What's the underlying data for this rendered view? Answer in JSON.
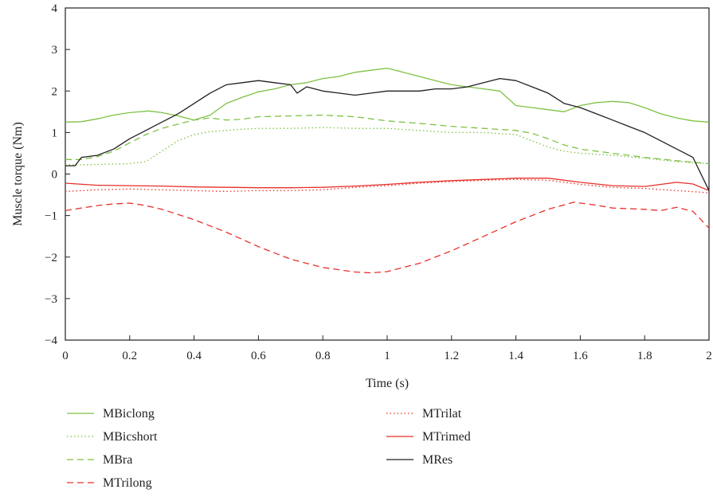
{
  "chart_data": {
    "type": "line",
    "title": "",
    "xlabel": "Time (s)",
    "ylabel": "Muscle torque (Nm)",
    "xlim": [
      0,
      2
    ],
    "ylim": [
      -4,
      4
    ],
    "x_ticks": [
      "0",
      "0.2",
      "0.4",
      "0.6",
      "0.8",
      "1",
      "1.2",
      "1.4",
      "1.6",
      "1.8",
      "2"
    ],
    "y_ticks": [
      "4",
      "3",
      "2",
      "1",
      "0",
      "−1",
      "−2",
      "−3",
      "−4"
    ],
    "grid": false,
    "legend_position": "bottom",
    "series": [
      {
        "name": "MBiclong",
        "color": "#7dc242",
        "dash": "solid",
        "x": [
          0,
          0.05,
          0.1,
          0.15,
          0.2,
          0.26,
          0.3,
          0.35,
          0.4,
          0.45,
          0.5,
          0.55,
          0.6,
          0.65,
          0.7,
          0.75,
          0.8,
          0.85,
          0.9,
          0.95,
          1.0,
          1.05,
          1.1,
          1.15,
          1.2,
          1.25,
          1.3,
          1.35,
          1.4,
          1.45,
          1.5,
          1.55,
          1.6,
          1.65,
          1.7,
          1.75,
          1.8,
          1.85,
          1.9,
          1.95,
          2.0
        ],
        "y": [
          1.25,
          1.26,
          1.33,
          1.42,
          1.48,
          1.52,
          1.48,
          1.4,
          1.3,
          1.42,
          1.7,
          1.85,
          1.98,
          2.05,
          2.15,
          2.2,
          2.3,
          2.35,
          2.45,
          2.5,
          2.55,
          2.45,
          2.35,
          2.25,
          2.15,
          2.1,
          2.05,
          2.0,
          1.65,
          1.6,
          1.55,
          1.5,
          1.65,
          1.72,
          1.75,
          1.72,
          1.6,
          1.45,
          1.35,
          1.28,
          1.25
        ]
      },
      {
        "name": "MBicshort",
        "color": "#7dc242",
        "dash": "dotted",
        "x": [
          0,
          0.05,
          0.1,
          0.15,
          0.2,
          0.25,
          0.3,
          0.35,
          0.4,
          0.45,
          0.5,
          0.55,
          0.6,
          0.7,
          0.8,
          0.9,
          1.0,
          1.1,
          1.2,
          1.3,
          1.4,
          1.45,
          1.5,
          1.55,
          1.6,
          1.7,
          1.8,
          1.9,
          2.0
        ],
        "y": [
          0.22,
          0.22,
          0.23,
          0.24,
          0.25,
          0.3,
          0.55,
          0.8,
          0.95,
          1.02,
          1.05,
          1.08,
          1.1,
          1.1,
          1.12,
          1.1,
          1.1,
          1.05,
          1.0,
          1.0,
          0.95,
          0.8,
          0.65,
          0.55,
          0.5,
          0.45,
          0.38,
          0.3,
          0.25
        ]
      },
      {
        "name": "MBra",
        "color": "#7dc242",
        "dash": "dashed",
        "x": [
          0,
          0.05,
          0.1,
          0.15,
          0.2,
          0.25,
          0.3,
          0.35,
          0.4,
          0.45,
          0.5,
          0.55,
          0.6,
          0.7,
          0.8,
          0.9,
          1.0,
          1.1,
          1.2,
          1.3,
          1.4,
          1.45,
          1.5,
          1.55,
          1.6,
          1.7,
          1.8,
          1.9,
          2.0
        ],
        "y": [
          0.35,
          0.35,
          0.42,
          0.55,
          0.75,
          0.95,
          1.1,
          1.2,
          1.3,
          1.35,
          1.3,
          1.32,
          1.38,
          1.4,
          1.42,
          1.38,
          1.28,
          1.22,
          1.15,
          1.1,
          1.05,
          0.98,
          0.85,
          0.7,
          0.6,
          0.5,
          0.4,
          0.32,
          0.25
        ]
      },
      {
        "name": "MTrilong",
        "color": "#e8302a",
        "dash": "dashed",
        "x": [
          0,
          0.05,
          0.1,
          0.15,
          0.2,
          0.25,
          0.3,
          0.4,
          0.5,
          0.6,
          0.7,
          0.8,
          0.9,
          0.95,
          1.0,
          1.1,
          1.2,
          1.3,
          1.4,
          1.5,
          1.58,
          1.65,
          1.7,
          1.8,
          1.85,
          1.9,
          1.95,
          2.0
        ],
        "y": [
          -0.88,
          -0.82,
          -0.76,
          -0.72,
          -0.7,
          -0.76,
          -0.85,
          -1.1,
          -1.4,
          -1.75,
          -2.05,
          -2.25,
          -2.36,
          -2.38,
          -2.35,
          -2.15,
          -1.85,
          -1.5,
          -1.15,
          -0.85,
          -0.68,
          -0.75,
          -0.82,
          -0.85,
          -0.88,
          -0.8,
          -0.9,
          -1.3
        ]
      },
      {
        "name": "MTrilat",
        "color": "#e8302a",
        "dash": "dotted",
        "x": [
          0,
          0.1,
          0.2,
          0.3,
          0.4,
          0.5,
          0.6,
          0.7,
          0.8,
          0.9,
          1.0,
          1.1,
          1.2,
          1.3,
          1.4,
          1.5,
          1.6,
          1.7,
          1.8,
          1.9,
          2.0
        ],
        "y": [
          -0.42,
          -0.38,
          -0.36,
          -0.38,
          -0.4,
          -0.42,
          -0.4,
          -0.4,
          -0.38,
          -0.32,
          -0.28,
          -0.22,
          -0.18,
          -0.15,
          -0.13,
          -0.15,
          -0.25,
          -0.32,
          -0.35,
          -0.4,
          -0.45
        ]
      },
      {
        "name": "MTrimed",
        "color": "#e8302a",
        "dash": "solid",
        "x": [
          0,
          0.1,
          0.2,
          0.3,
          0.4,
          0.5,
          0.6,
          0.7,
          0.8,
          0.9,
          1.0,
          1.1,
          1.2,
          1.3,
          1.4,
          1.5,
          1.6,
          1.7,
          1.8,
          1.9,
          1.95,
          2.0
        ],
        "y": [
          -0.22,
          -0.27,
          -0.28,
          -0.29,
          -0.31,
          -0.32,
          -0.33,
          -0.33,
          -0.32,
          -0.29,
          -0.25,
          -0.2,
          -0.16,
          -0.13,
          -0.1,
          -0.1,
          -0.2,
          -0.28,
          -0.3,
          -0.2,
          -0.24,
          -0.4
        ]
      },
      {
        "name": "MRes",
        "color": "#231f20",
        "dash": "solid",
        "x": [
          0,
          0.03,
          0.05,
          0.1,
          0.15,
          0.2,
          0.25,
          0.3,
          0.35,
          0.4,
          0.45,
          0.5,
          0.55,
          0.6,
          0.65,
          0.7,
          0.72,
          0.75,
          0.8,
          0.85,
          0.9,
          0.95,
          1.0,
          1.05,
          1.1,
          1.15,
          1.2,
          1.25,
          1.3,
          1.35,
          1.4,
          1.45,
          1.5,
          1.55,
          1.6,
          1.65,
          1.7,
          1.75,
          1.8,
          1.85,
          1.9,
          1.95,
          2.0
        ],
        "y": [
          0.2,
          0.2,
          0.4,
          0.45,
          0.6,
          0.85,
          1.05,
          1.25,
          1.45,
          1.7,
          1.95,
          2.15,
          2.2,
          2.25,
          2.2,
          2.15,
          1.95,
          2.1,
          2.0,
          1.95,
          1.9,
          1.95,
          2.0,
          2.0,
          2.0,
          2.05,
          2.05,
          2.1,
          2.2,
          2.3,
          2.25,
          2.1,
          1.95,
          1.7,
          1.6,
          1.45,
          1.3,
          1.15,
          1.0,
          0.8,
          0.6,
          0.4,
          -0.4
        ]
      }
    ]
  }
}
